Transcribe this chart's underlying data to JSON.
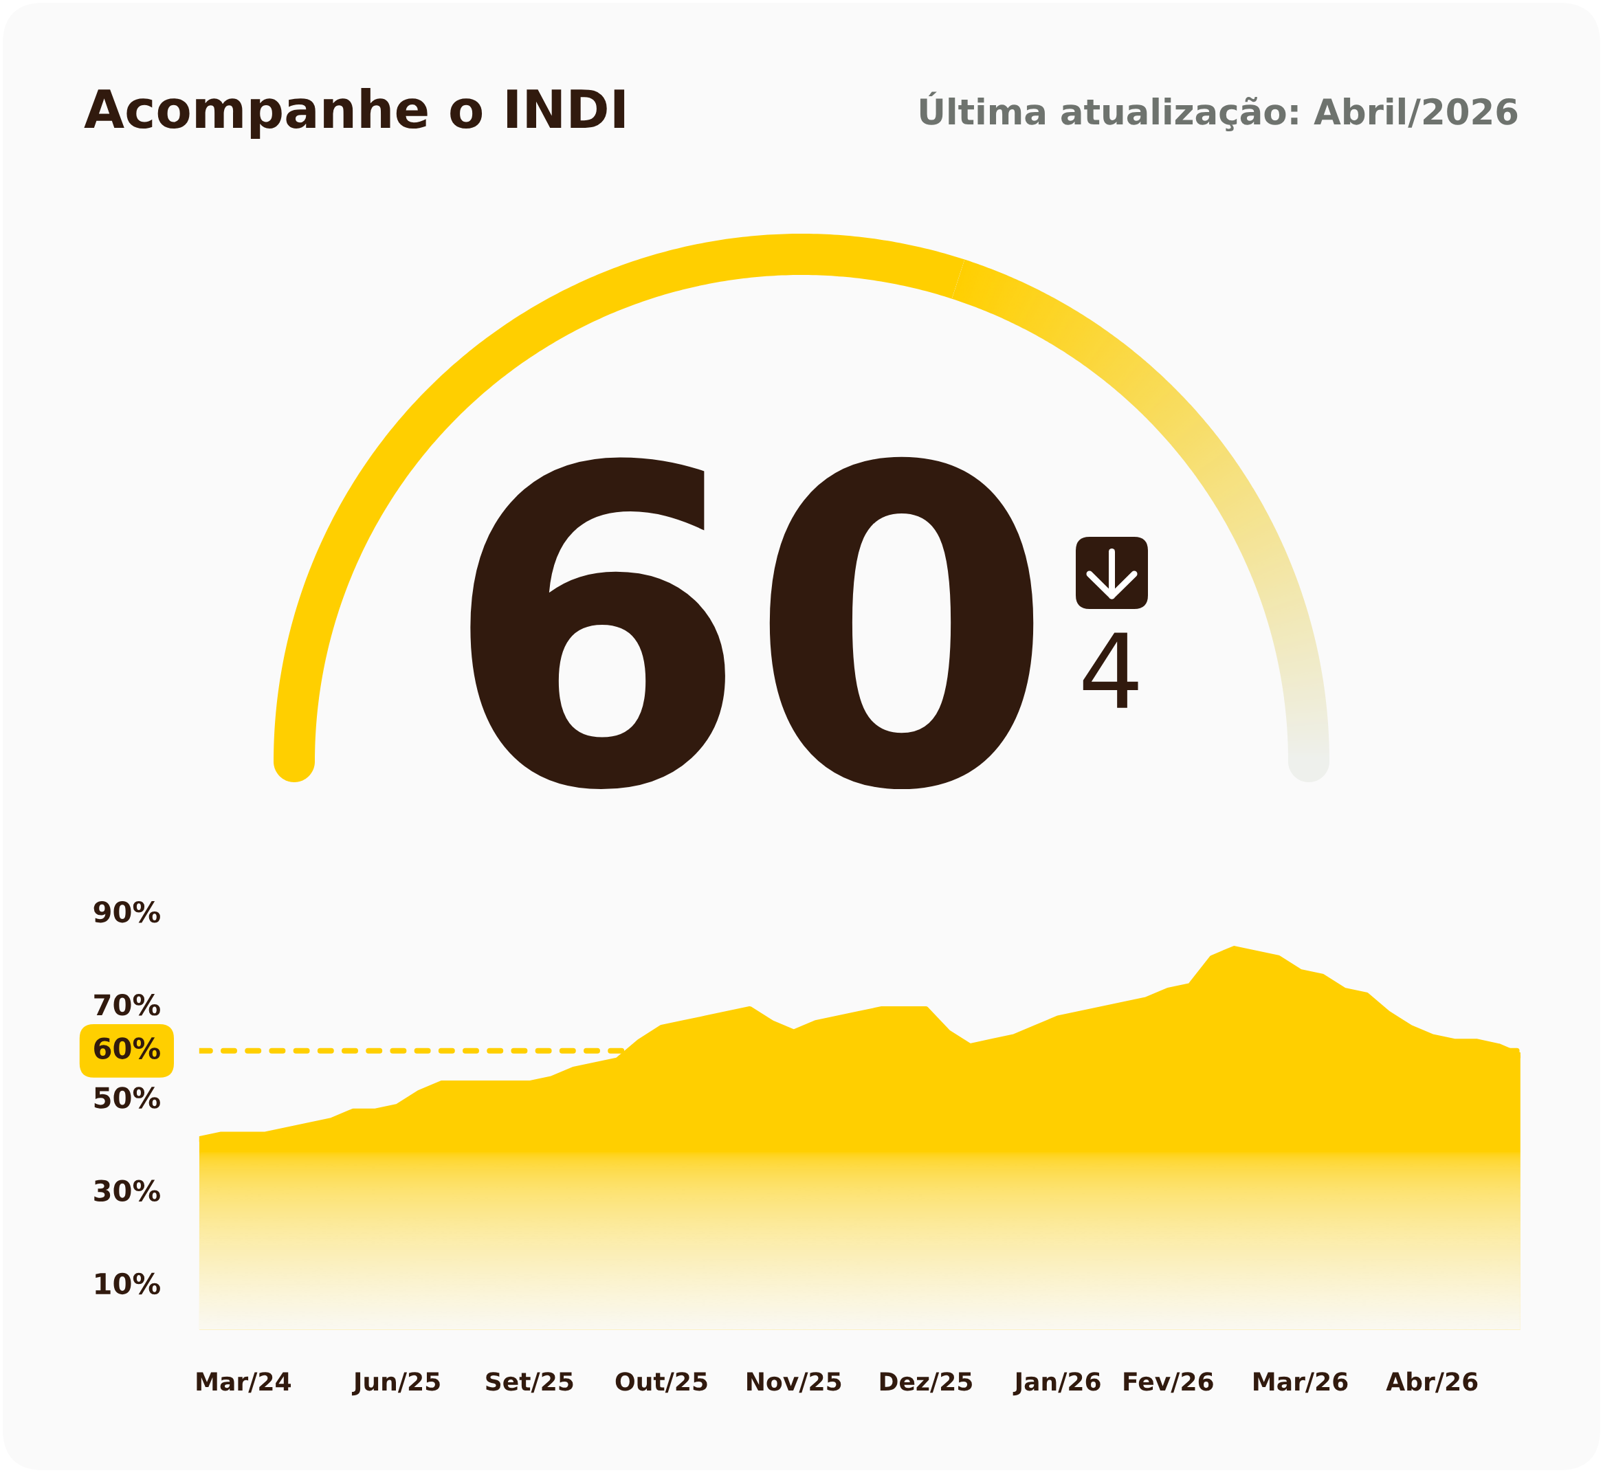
{
  "chart_data": [
    {
      "type": "donut",
      "title": "Acompanhe o INDI",
      "subtitle": "Última atualização: Abril/2026",
      "categories": [
        null,
        null
      ],
      "values": [
        60,
        40
      ],
      "colors": [
        "#ffcf00",
        "#eef0ec"
      ],
      "annotations": [
        "60",
        "4"
      ]
    },
    {
      "type": "area",
      "categories": [
        null,
        null,
        "Mar/24",
        null,
        null,
        null,
        null,
        null,
        null,
        "Jun/25",
        null,
        null,
        null,
        null,
        null,
        "Set/25",
        null,
        null,
        null,
        null,
        null,
        "Out/25",
        null,
        null,
        null,
        null,
        null,
        "Nov/25",
        null,
        null,
        null,
        null,
        null,
        "Dez/25",
        null,
        null,
        null,
        null,
        null,
        "Jan/26",
        null,
        null,
        null,
        null,
        "Fev/26",
        null,
        null,
        null,
        null,
        null,
        "Mar/26",
        null,
        null,
        null,
        null,
        null,
        "Abr/26",
        null,
        null,
        null,
        null
      ],
      "series": [
        {
          "color": "#ffcf00",
          "values": [
            41,
            42,
            42,
            42,
            43,
            44,
            45,
            47,
            47,
            48,
            51,
            53,
            53,
            53,
            53,
            53,
            54,
            56,
            57,
            58,
            62,
            65,
            66,
            67,
            68,
            69,
            66,
            64,
            66,
            67,
            68,
            69,
            69,
            69,
            64,
            61,
            62,
            63,
            65,
            67,
            68,
            69,
            70,
            71,
            73,
            74,
            80,
            82,
            81,
            80,
            77,
            76,
            73,
            72,
            68,
            65,
            63,
            62,
            62,
            61,
            59
          ]
        }
      ],
      "ylim": [
        0,
        90
      ],
      "yticks": [
        {
          "value": 10,
          "label": "10%"
        },
        {
          "value": 30,
          "label": "30%"
        },
        {
          "value": 50,
          "label": "50%"
        },
        {
          "value": 70,
          "label": "70%"
        },
        {
          "value": 90,
          "label": "90%"
        }
      ],
      "ref_lines": [
        {
          "axis": "y",
          "value": 60,
          "label": "60%",
          "color": "#ffcf00",
          "line_style": "dashed"
        }
      ]
    }
  ]
}
